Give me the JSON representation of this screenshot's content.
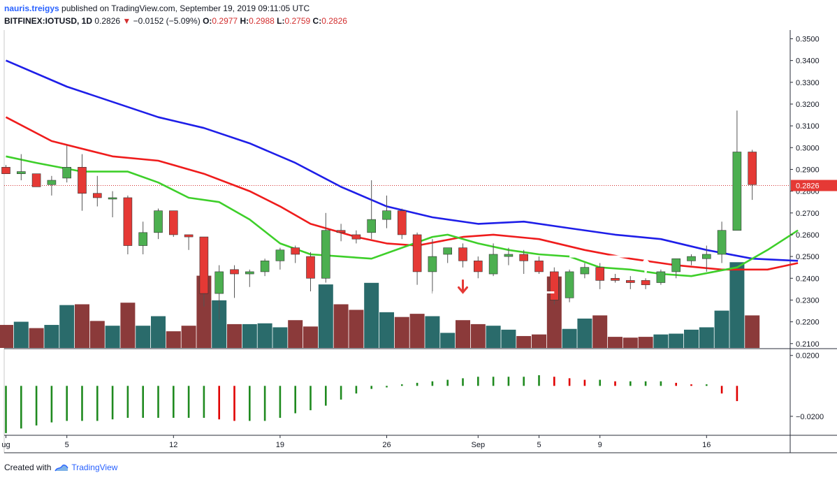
{
  "header": {
    "user": "nauris.treigys",
    "published_text": "published on TradingView.com, September 19, 2019 09:11:05 UTC",
    "symbol": "BITFINEX:IOTUSD, 1D",
    "last": "0.2826",
    "change": "−0.0152 (−5.09%)",
    "o_label": "O:",
    "o_value": "0.2977",
    "h_label": "H:",
    "h_value": "0.2988",
    "l_label": "L:",
    "l_value": "0.2759",
    "c_label": "C:",
    "c_value": "0.2826"
  },
  "footer": {
    "created_with": "Created with",
    "brand": "TradingView"
  },
  "colors": {
    "up": "#4caf50",
    "down": "#e53935",
    "vol_up": "#2a6b6b",
    "vol_down": "#8b3a3a",
    "ma_blue": "#1e1ee8",
    "ma_red": "#ef1c1c",
    "ma_green": "#3ecf2a",
    "price_line": "#d32f2f",
    "last_tag": "#e53935"
  },
  "chart_data": {
    "type": "candlestick",
    "symbol": "BITFINEX:IOTUSD",
    "interval": "1D",
    "x_tick_labels": [
      "ug",
      "5",
      "12",
      "19",
      "26",
      "Sep",
      "5",
      "9",
      "16"
    ],
    "x_tick_index": [
      0,
      4,
      11,
      18,
      25,
      31,
      35,
      39,
      46
    ],
    "price_axis": {
      "labels": [
        "0.3500",
        "0.3400",
        "0.3300",
        "0.3200",
        "0.3100",
        "0.3000",
        "0.2900",
        "0.2800",
        "0.2700",
        "0.2600",
        "0.2500",
        "0.2400",
        "0.2300",
        "0.2200",
        "0.2100"
      ],
      "ylim": [
        0.208,
        0.354
      ],
      "last_price": "0.2826"
    },
    "indicator_axis": {
      "labels": [
        "0.0200",
        "−0.0200"
      ],
      "ylim": [
        -0.032,
        0.024
      ]
    },
    "candles": [
      {
        "o": 0.291,
        "h": 0.292,
        "l": 0.288,
        "c": 0.288
      },
      {
        "o": 0.288,
        "h": 0.297,
        "l": 0.285,
        "c": 0.289
      },
      {
        "o": 0.288,
        "h": 0.288,
        "l": 0.282,
        "c": 0.282
      },
      {
        "o": 0.283,
        "h": 0.287,
        "l": 0.278,
        "c": 0.285
      },
      {
        "o": 0.286,
        "h": 0.301,
        "l": 0.284,
        "c": 0.291
      },
      {
        "o": 0.291,
        "h": 0.297,
        "l": 0.271,
        "c": 0.279
      },
      {
        "o": 0.279,
        "h": 0.287,
        "l": 0.273,
        "c": 0.277
      },
      {
        "o": 0.277,
        "h": 0.28,
        "l": 0.268,
        "c": 0.277
      },
      {
        "o": 0.277,
        "h": 0.278,
        "l": 0.251,
        "c": 0.255
      },
      {
        "o": 0.255,
        "h": 0.266,
        "l": 0.251,
        "c": 0.261
      },
      {
        "o": 0.261,
        "h": 0.272,
        "l": 0.258,
        "c": 0.271
      },
      {
        "o": 0.271,
        "h": 0.271,
        "l": 0.259,
        "c": 0.26
      },
      {
        "o": 0.26,
        "h": 0.26,
        "l": 0.253,
        "c": 0.259
      },
      {
        "o": 0.259,
        "h": 0.259,
        "l": 0.227,
        "c": 0.233
      },
      {
        "o": 0.233,
        "h": 0.246,
        "l": 0.221,
        "c": 0.243
      },
      {
        "o": 0.244,
        "h": 0.246,
        "l": 0.231,
        "c": 0.242
      },
      {
        "o": 0.242,
        "h": 0.244,
        "l": 0.236,
        "c": 0.243
      },
      {
        "o": 0.243,
        "h": 0.249,
        "l": 0.241,
        "c": 0.248
      },
      {
        "o": 0.248,
        "h": 0.254,
        "l": 0.244,
        "c": 0.253
      },
      {
        "o": 0.254,
        "h": 0.255,
        "l": 0.247,
        "c": 0.251
      },
      {
        "o": 0.25,
        "h": 0.252,
        "l": 0.234,
        "c": 0.24
      },
      {
        "o": 0.24,
        "h": 0.27,
        "l": 0.238,
        "c": 0.262
      },
      {
        "o": 0.262,
        "h": 0.265,
        "l": 0.257,
        "c": 0.261
      },
      {
        "o": 0.26,
        "h": 0.262,
        "l": 0.256,
        "c": 0.258
      },
      {
        "o": 0.261,
        "h": 0.285,
        "l": 0.258,
        "c": 0.267
      },
      {
        "o": 0.267,
        "h": 0.278,
        "l": 0.263,
        "c": 0.271
      },
      {
        "o": 0.271,
        "h": 0.272,
        "l": 0.258,
        "c": 0.26
      },
      {
        "o": 0.26,
        "h": 0.261,
        "l": 0.237,
        "c": 0.243
      },
      {
        "o": 0.243,
        "h": 0.258,
        "l": 0.233,
        "c": 0.25
      },
      {
        "o": 0.251,
        "h": 0.254,
        "l": 0.247,
        "c": 0.254
      },
      {
        "o": 0.254,
        "h": 0.256,
        "l": 0.245,
        "c": 0.248
      },
      {
        "o": 0.248,
        "h": 0.25,
        "l": 0.24,
        "c": 0.243
      },
      {
        "o": 0.242,
        "h": 0.256,
        "l": 0.241,
        "c": 0.251
      },
      {
        "o": 0.25,
        "h": 0.254,
        "l": 0.246,
        "c": 0.251
      },
      {
        "o": 0.251,
        "h": 0.253,
        "l": 0.242,
        "c": 0.248
      },
      {
        "o": 0.248,
        "h": 0.25,
        "l": 0.242,
        "c": 0.243
      },
      {
        "o": 0.243,
        "h": 0.245,
        "l": 0.228,
        "c": 0.23
      },
      {
        "o": 0.231,
        "h": 0.244,
        "l": 0.229,
        "c": 0.243
      },
      {
        "o": 0.242,
        "h": 0.247,
        "l": 0.24,
        "c": 0.245
      },
      {
        "o": 0.245,
        "h": 0.247,
        "l": 0.235,
        "c": 0.239
      },
      {
        "o": 0.24,
        "h": 0.242,
        "l": 0.238,
        "c": 0.239
      },
      {
        "o": 0.239,
        "h": 0.241,
        "l": 0.235,
        "c": 0.238
      },
      {
        "o": 0.239,
        "h": 0.24,
        "l": 0.235,
        "c": 0.237
      },
      {
        "o": 0.238,
        "h": 0.244,
        "l": 0.237,
        "c": 0.243
      },
      {
        "o": 0.243,
        "h": 0.249,
        "l": 0.24,
        "c": 0.249
      },
      {
        "o": 0.248,
        "h": 0.251,
        "l": 0.246,
        "c": 0.25
      },
      {
        "o": 0.249,
        "h": 0.255,
        "l": 0.243,
        "c": 0.251
      },
      {
        "o": 0.251,
        "h": 0.266,
        "l": 0.247,
        "c": 0.262
      },
      {
        "o": 0.262,
        "h": 0.317,
        "l": 0.262,
        "c": 0.298
      },
      {
        "o": 0.298,
        "h": 0.299,
        "l": 0.276,
        "c": 0.283
      }
    ],
    "volume_scale": "relative",
    "volumes": [
      0.29,
      0.33,
      0.25,
      0.29,
      0.54,
      0.55,
      0.34,
      0.28,
      0.57,
      0.28,
      0.4,
      0.21,
      0.28,
      0.91,
      0.6,
      0.3,
      0.3,
      0.31,
      0.26,
      0.35,
      0.27,
      0.8,
      0.55,
      0.48,
      0.82,
      0.45,
      0.39,
      0.43,
      0.4,
      0.19,
      0.35,
      0.3,
      0.28,
      0.23,
      0.15,
      0.17,
      0.9,
      0.24,
      0.37,
      0.41,
      0.14,
      0.13,
      0.14,
      0.17,
      0.18,
      0.23,
      0.26,
      0.47,
      1.08,
      0.41
    ],
    "moving_averages": [
      {
        "color": "blue",
        "points": [
          [
            0,
            0.34
          ],
          [
            4,
            0.328
          ],
          [
            7,
            0.321
          ],
          [
            10,
            0.314
          ],
          [
            13,
            0.309
          ],
          [
            16,
            0.302
          ],
          [
            19,
            0.293
          ],
          [
            22,
            0.282
          ],
          [
            25,
            0.273
          ],
          [
            28,
            0.268
          ],
          [
            31,
            0.265
          ],
          [
            34,
            0.266
          ],
          [
            37,
            0.263
          ],
          [
            40,
            0.26
          ],
          [
            43,
            0.258
          ],
          [
            46,
            0.253
          ],
          [
            49,
            0.249
          ],
          [
            52,
            0.248
          ]
        ]
      },
      {
        "color": "red",
        "points": [
          [
            0,
            0.314
          ],
          [
            3,
            0.303
          ],
          [
            7,
            0.296
          ],
          [
            10,
            0.294
          ],
          [
            13,
            0.288
          ],
          [
            16,
            0.28
          ],
          [
            18,
            0.273
          ],
          [
            20,
            0.265
          ],
          [
            23,
            0.259
          ],
          [
            25,
            0.256
          ],
          [
            27,
            0.255
          ],
          [
            30,
            0.259
          ],
          [
            32,
            0.26
          ],
          [
            35,
            0.258
          ],
          [
            38,
            0.253
          ],
          [
            41,
            0.249
          ],
          [
            44,
            0.246
          ],
          [
            47,
            0.244
          ],
          [
            50,
            0.244
          ],
          [
            52,
            0.247
          ]
        ]
      },
      {
        "color": "green",
        "points": [
          [
            0,
            0.296
          ],
          [
            2,
            0.293
          ],
          [
            5,
            0.289
          ],
          [
            8,
            0.289
          ],
          [
            10,
            0.284
          ],
          [
            12,
            0.277
          ],
          [
            14,
            0.275
          ],
          [
            16,
            0.267
          ],
          [
            18,
            0.256
          ],
          [
            20,
            0.251
          ],
          [
            22,
            0.25
          ],
          [
            24,
            0.249
          ],
          [
            26,
            0.254
          ],
          [
            28,
            0.259
          ],
          [
            29,
            0.26
          ],
          [
            31,
            0.256
          ],
          [
            33,
            0.253
          ],
          [
            35,
            0.251
          ],
          [
            37,
            0.25
          ],
          [
            39,
            0.245
          ],
          [
            41,
            0.244
          ],
          [
            43,
            0.242
          ],
          [
            45,
            0.241
          ],
          [
            48,
            0.245
          ],
          [
            50,
            0.253
          ],
          [
            52,
            0.262
          ]
        ]
      }
    ],
    "indicator_histogram": [
      -0.031,
      -0.028,
      -0.026,
      -0.024,
      -0.023,
      -0.023,
      -0.023,
      -0.022,
      -0.021,
      -0.021,
      -0.021,
      -0.021,
      -0.021,
      -0.021,
      -0.022,
      -0.023,
      -0.023,
      -0.023,
      -0.021,
      -0.018,
      -0.016,
      -0.013,
      -0.009,
      -0.005,
      -0.002,
      -0.001,
      0.001,
      0.002,
      0.003,
      0.004,
      0.005,
      0.006,
      0.006,
      0.006,
      0.006,
      0.007,
      0.006,
      0.005,
      0.004,
      0.004,
      0.003,
      0.003,
      0.003,
      0.003,
      0.002,
      0.001,
      0.001,
      -0.005,
      -0.01
    ],
    "annotations": [
      {
        "type": "hline",
        "from_index": 28,
        "to_index": 36,
        "price": 0.2335,
        "color": "white"
      },
      {
        "type": "arrow",
        "direction": "down",
        "index": 30,
        "price": 0.239,
        "color": "red"
      },
      {
        "type": "hline",
        "from_index": 37,
        "to_index": 44,
        "price": 0.25,
        "color": "white"
      },
      {
        "type": "arrow",
        "direction": "up",
        "index": 42,
        "price": 0.2475,
        "color": "white"
      }
    ]
  }
}
